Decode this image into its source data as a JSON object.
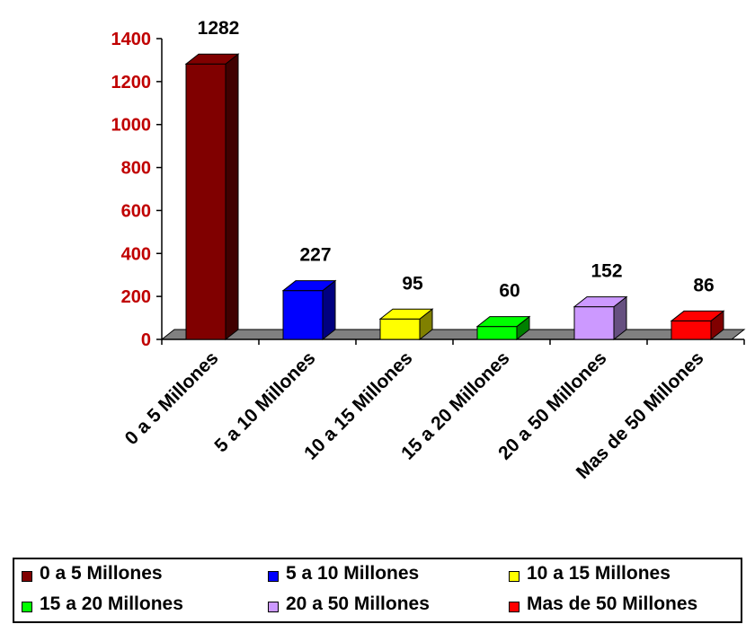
{
  "chart_data": {
    "type": "bar",
    "categories": [
      "0 a 5 Millones",
      "5 a 10 Millones",
      "10 a 15 Millones",
      "15 a 20 Millones",
      "20 a 50 Millones",
      "Mas de 50 Millones"
    ],
    "values": [
      1282,
      227,
      95,
      60,
      152,
      86
    ],
    "colors": [
      "#800000",
      "#0000ff",
      "#ffff00",
      "#00ff00",
      "#cc99ff",
      "#ff0000"
    ],
    "side_colors": [
      "#400000",
      "#000080",
      "#808000",
      "#008000",
      "#665080",
      "#800000"
    ],
    "ylim": [
      0,
      1400
    ],
    "yticks": [
      0,
      200,
      400,
      600,
      800,
      1000,
      1200,
      1400
    ],
    "ytick_color": "#c00000",
    "floor_color": "#808080",
    "title": "",
    "xlabel": "",
    "ylabel": "",
    "legend": {
      "placement": "bottom",
      "entries": [
        "0 a 5 Millones",
        "5 a 10 Millones",
        "10 a 15 Millones",
        "15 a 20 Millones",
        "20 a 50 Millones",
        "Mas de 50 Millones"
      ]
    },
    "style": "3d-bar"
  }
}
